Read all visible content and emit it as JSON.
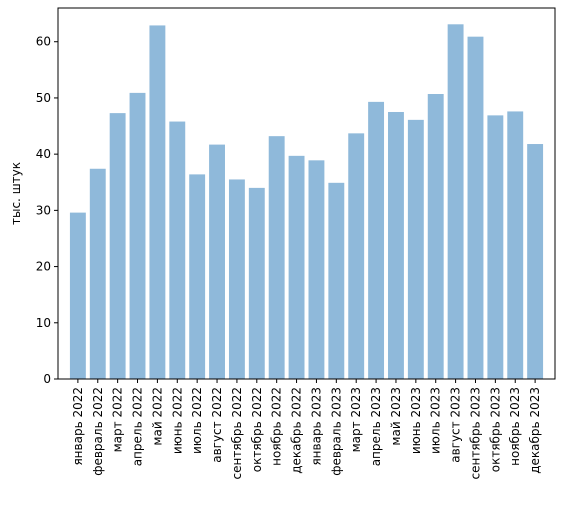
{
  "chart_data": {
    "type": "bar",
    "title": "",
    "xlabel": "",
    "ylabel": "тыс. штук",
    "ylim": [
      0,
      66
    ],
    "yticks": [
      0,
      10,
      20,
      30,
      40,
      50,
      60
    ],
    "grid": false,
    "bar_color": "#8fb9da",
    "categories": [
      "январь 2022",
      "февраль 2022",
      "март 2022",
      "апрель 2022",
      "май 2022",
      "июнь 2022",
      "июль 2022",
      "август 2022",
      "сентябрь 2022",
      "октябрь 2022",
      "ноябрь 2022",
      "декабрь 2022",
      "январь 2023",
      "февраль 2023",
      "март 2023",
      "апрель 2023",
      "май 2023",
      "июнь 2023",
      "июль 2023",
      "август 2023",
      "сентябрь 2023",
      "октябрь 2023",
      "ноябрь 2023",
      "декабрь 2023"
    ],
    "values": [
      29.6,
      37.4,
      47.3,
      50.9,
      62.9,
      45.8,
      36.4,
      41.7,
      35.5,
      34.0,
      43.2,
      39.7,
      38.9,
      34.9,
      43.7,
      49.3,
      47.5,
      46.1,
      50.7,
      63.1,
      60.9,
      46.9,
      47.6,
      41.8
    ]
  }
}
